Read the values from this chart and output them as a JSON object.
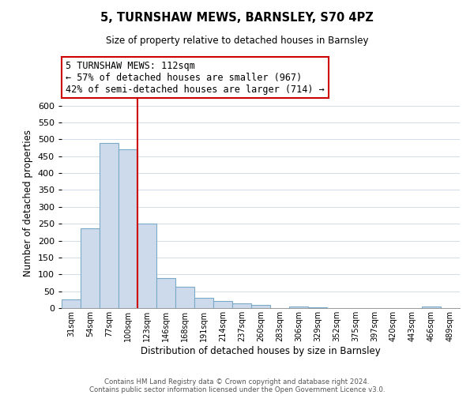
{
  "title": "5, TURNSHAW MEWS, BARNSLEY, S70 4PZ",
  "subtitle": "Size of property relative to detached houses in Barnsley",
  "xlabel": "Distribution of detached houses by size in Barnsley",
  "ylabel": "Number of detached properties",
  "bar_labels": [
    "31sqm",
    "54sqm",
    "77sqm",
    "100sqm",
    "123sqm",
    "146sqm",
    "168sqm",
    "191sqm",
    "214sqm",
    "237sqm",
    "260sqm",
    "283sqm",
    "306sqm",
    "329sqm",
    "352sqm",
    "375sqm",
    "397sqm",
    "420sqm",
    "443sqm",
    "466sqm",
    "489sqm"
  ],
  "bar_values": [
    25,
    237,
    490,
    470,
    250,
    88,
    63,
    30,
    22,
    13,
    10,
    0,
    5,
    2,
    1,
    1,
    0,
    0,
    0,
    5,
    0
  ],
  "bar_color": "#cddaeb",
  "bar_edge_color": "#7aaac8",
  "vline_x": 3.5,
  "vline_color": "#cc0000",
  "annotation_text": "5 TURNSHAW MEWS: 112sqm\n← 57% of detached houses are smaller (967)\n42% of semi-detached houses are larger (714) →",
  "annotation_box_color": "#ffffff",
  "annotation_box_edge": "#cc0000",
  "ylim": [
    0,
    620
  ],
  "yticks": [
    0,
    50,
    100,
    150,
    200,
    250,
    300,
    350,
    400,
    450,
    500,
    550,
    600
  ],
  "footer1": "Contains HM Land Registry data © Crown copyright and database right 2024.",
  "footer2": "Contains public sector information licensed under the Open Government Licence v3.0."
}
